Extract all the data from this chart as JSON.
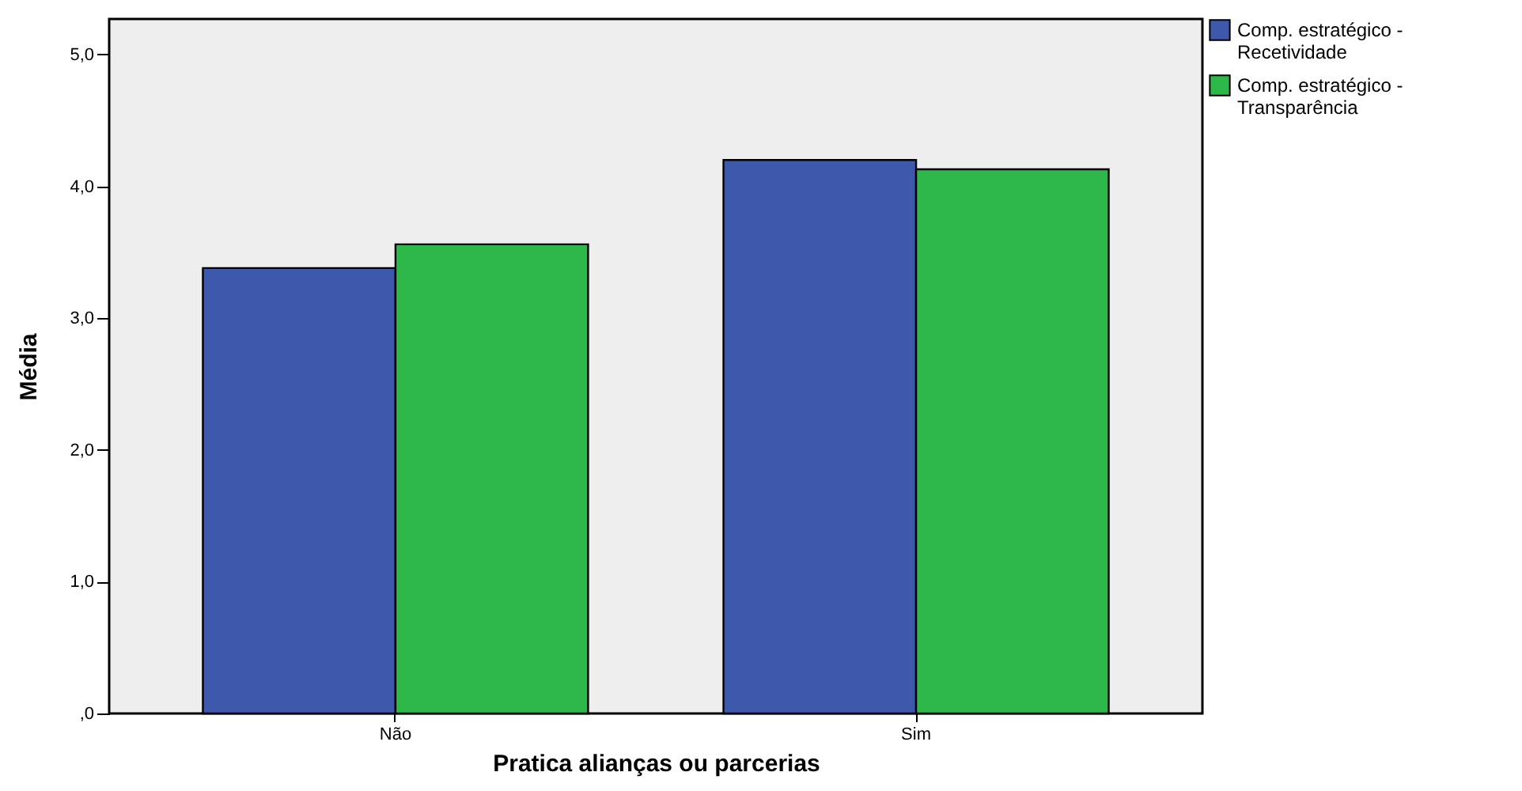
{
  "chart_data": {
    "type": "bar",
    "xlabel": "Pratica alianças ou parcerias",
    "ylabel": "Média",
    "categories": [
      "Não",
      "Sim"
    ],
    "series": [
      {
        "name": "Comp. estratégico - Recetividade",
        "color": "#3e58ac",
        "values": [
          3.38,
          4.2
        ]
      },
      {
        "name": "Comp. estratégico - Transparência",
        "color": "#2eb84a",
        "values": [
          3.56,
          4.13
        ]
      }
    ],
    "ylim": [
      0,
      5.27
    ],
    "yticks": [
      {
        "value": 0,
        "label": ",0"
      },
      {
        "value": 1,
        "label": "1,0"
      },
      {
        "value": 2,
        "label": "2,0"
      },
      {
        "value": 3,
        "label": "3,0"
      },
      {
        "value": 4,
        "label": "4,0"
      },
      {
        "value": 5,
        "label": "5,0"
      }
    ],
    "grid": false,
    "legend": "top right"
  }
}
